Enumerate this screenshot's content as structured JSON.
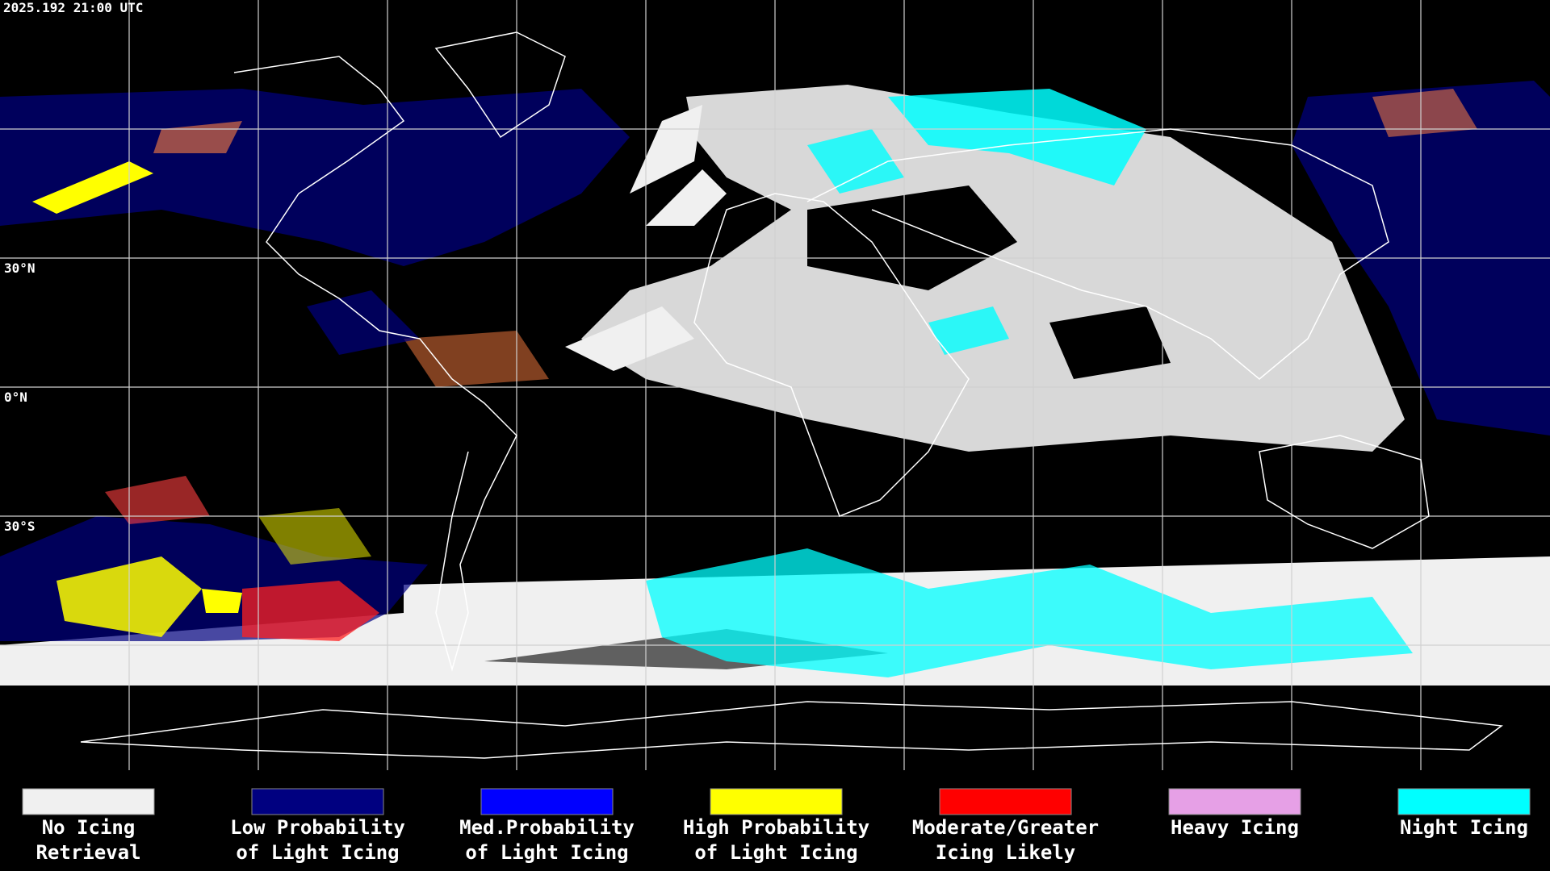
{
  "header": {
    "timestamp": "2025.192 21:00 UTC"
  },
  "map": {
    "latitude_labels": [
      "30°N",
      "0°N",
      "30°S"
    ]
  },
  "legend": {
    "items": [
      {
        "lines": [
          "No Icing",
          "Retrieval"
        ],
        "color": "#f0f0f0"
      },
      {
        "lines": [
          "Low Probability",
          "of Light Icing"
        ],
        "color": "#000080"
      },
      {
        "lines": [
          "Med.Probability",
          "of Light Icing"
        ],
        "color": "#0000ff"
      },
      {
        "lines": [
          "High Probability",
          "of Light Icing"
        ],
        "color": "#ffff00"
      },
      {
        "lines": [
          "Moderate/Greater",
          "Icing Likely"
        ],
        "color": "#ff0000"
      },
      {
        "lines": [
          "Heavy Icing"
        ],
        "color": "#e6a0e6"
      },
      {
        "lines": [
          "Night Icing"
        ],
        "color": "#00ffff"
      }
    ]
  }
}
